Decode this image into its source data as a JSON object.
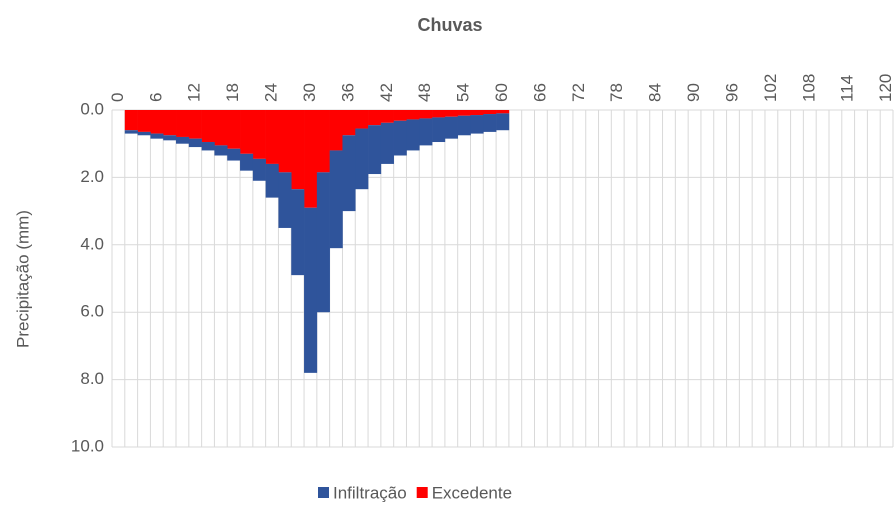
{
  "chart_data": {
    "type": "bar",
    "stacked": true,
    "title": "Chuvas",
    "y_label": "Precipitação (mm)",
    "categories": [
      "0",
      null,
      null,
      "6",
      null,
      null,
      "12",
      null,
      null,
      "18",
      null,
      null,
      "24",
      null,
      null,
      "30",
      null,
      null,
      "36",
      null,
      null,
      "42",
      null,
      null,
      "48",
      null,
      null,
      "54",
      null,
      null,
      "60",
      null,
      null,
      "66",
      null,
      null,
      "72",
      null,
      null,
      "78",
      null,
      null,
      "84",
      null,
      null,
      "90",
      null,
      null,
      "96",
      null,
      null,
      "102",
      null,
      null,
      "108",
      null,
      null,
      "114",
      null,
      null,
      "120"
    ],
    "series": [
      {
        "name": "Excedente",
        "color": "#ff0000",
        "values": [
          null,
          0.6,
          0.65,
          0.7,
          0.75,
          0.8,
          0.85,
          0.95,
          1.05,
          1.15,
          1.3,
          1.45,
          1.6,
          1.85,
          2.35,
          2.9,
          1.85,
          1.2,
          0.75,
          0.55,
          0.45,
          0.38,
          0.32,
          0.28,
          0.25,
          0.22,
          0.2,
          0.17,
          0.15,
          0.12,
          0.1,
          null,
          null,
          null,
          null,
          null,
          null,
          null,
          null,
          null,
          null,
          null,
          null,
          null,
          null,
          null,
          null,
          null,
          null,
          null,
          null,
          null,
          null,
          null,
          null,
          null,
          null,
          null,
          null,
          null,
          null
        ]
      },
      {
        "name": "Infiltração",
        "color": "#2f549b",
        "values": [
          null,
          0.1,
          0.1,
          0.15,
          0.15,
          0.2,
          0.25,
          0.25,
          0.3,
          0.35,
          0.5,
          0.65,
          1.0,
          1.65,
          2.55,
          4.9,
          4.15,
          2.9,
          2.25,
          1.8,
          1.45,
          1.22,
          1.03,
          0.92,
          0.8,
          0.73,
          0.65,
          0.58,
          0.55,
          0.53,
          0.5,
          null,
          null,
          null,
          null,
          null,
          null,
          null,
          null,
          null,
          null,
          null,
          null,
          null,
          null,
          null,
          null,
          null,
          null,
          null,
          null,
          null,
          null,
          null,
          null,
          null,
          null,
          null,
          null,
          null,
          null
        ]
      }
    ],
    "legend_order": [
      "Infiltração",
      "Excedente"
    ],
    "ylim": [
      0,
      10
    ],
    "y_inverted": true,
    "yticks": [
      {
        "value": 0,
        "label": "0.0"
      },
      {
        "value": 2,
        "label": "2.0"
      },
      {
        "value": 4,
        "label": "4.0"
      },
      {
        "value": 6,
        "label": "6.0"
      },
      {
        "value": 8,
        "label": "8.0"
      },
      {
        "value": 10,
        "label": "10.0"
      }
    ],
    "grid": true,
    "legend": "bottom"
  }
}
